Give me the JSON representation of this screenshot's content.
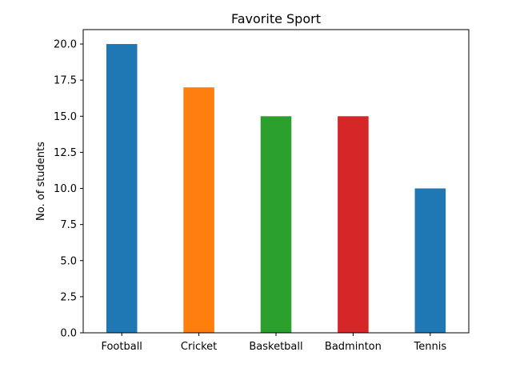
{
  "chart_data": {
    "type": "bar",
    "title": "Favorite Sport",
    "xlabel": "",
    "ylabel": "No. of students",
    "categories": [
      "Football",
      "Cricket",
      "Basketball",
      "Badminton",
      "Tennis"
    ],
    "values": [
      20,
      17,
      15,
      15,
      10
    ],
    "colors": [
      "#1f77b4",
      "#ff7f0e",
      "#2ca02c",
      "#d62728",
      "#1f77b4"
    ],
    "ylim": [
      0,
      21
    ],
    "yticks": [
      "0.0",
      "2.5",
      "5.0",
      "7.5",
      "10.0",
      "12.5",
      "15.0",
      "17.5",
      "20.0"
    ],
    "grid": false,
    "legend": "none"
  }
}
